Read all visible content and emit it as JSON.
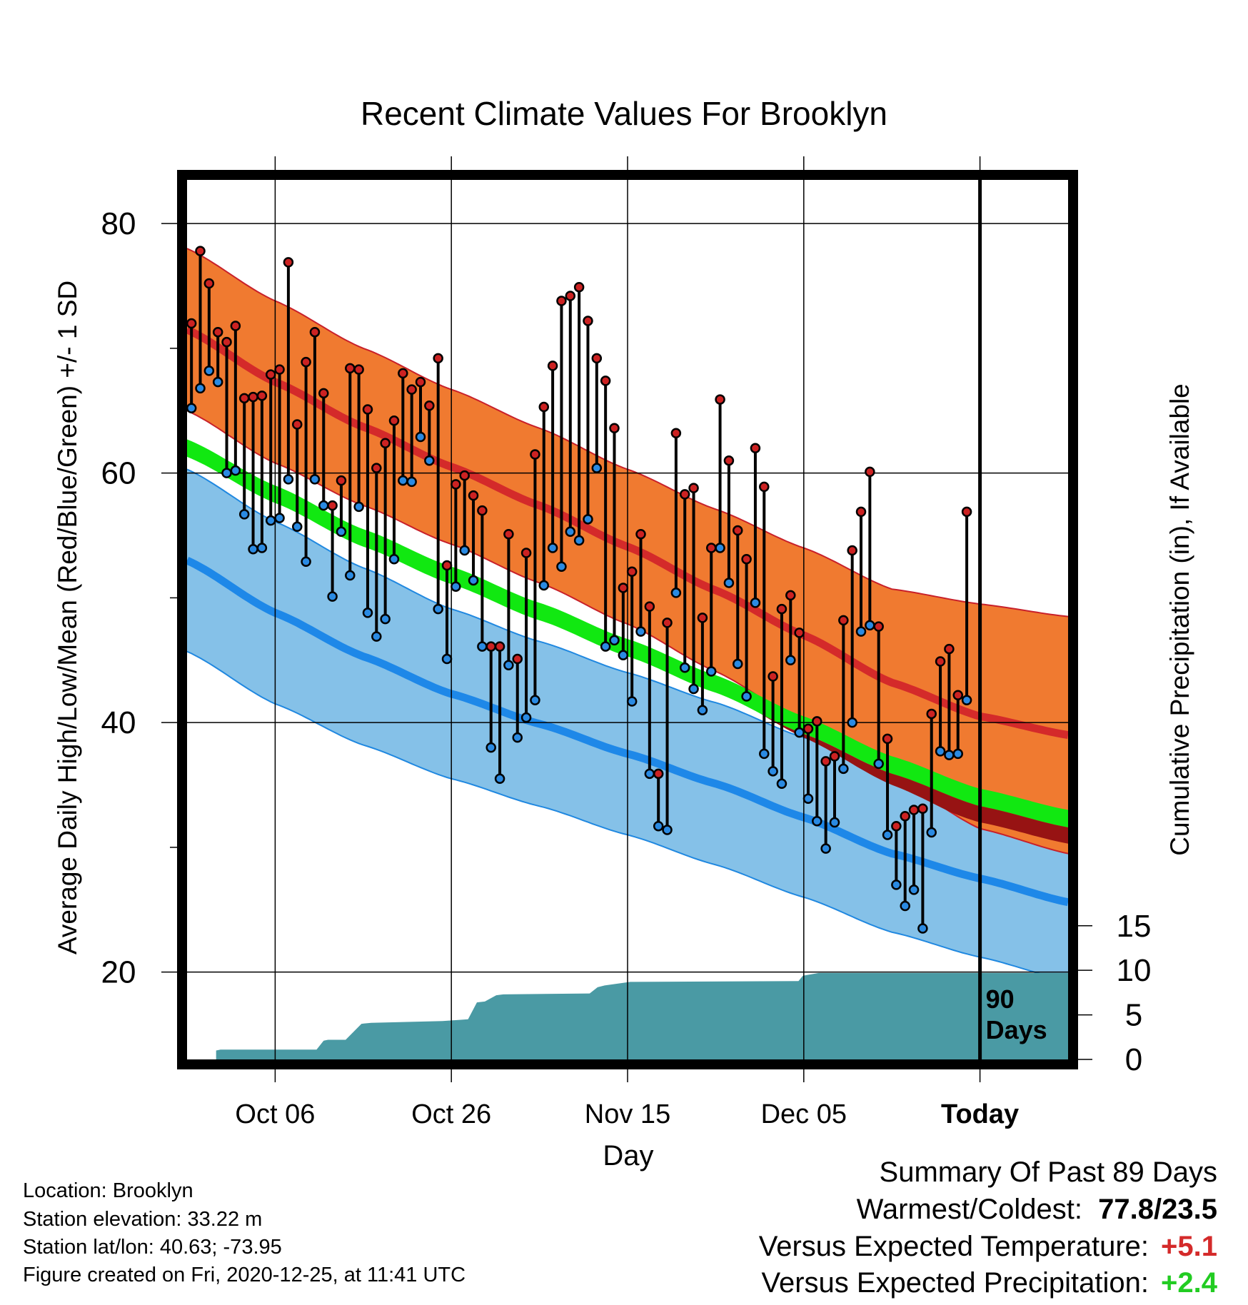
{
  "chart_data": {
    "type": "line",
    "title": "Recent Climate Values For Brooklyn",
    "xlabel": "Day",
    "ylabel_left": "Average Daily High/Low/Mean (Red/Blue/Green) +/- 1 SD",
    "ylabel_right": "Cumulative Precipitation (in), If Available",
    "x_start_day": 0,
    "x_end_day": 100,
    "ylim": [
      13,
      83.5
    ],
    "x_ticks": [
      {
        "day": 10,
        "label": "Oct 06"
      },
      {
        "day": 30,
        "label": "Oct 26"
      },
      {
        "day": 50,
        "label": "Nov 15"
      },
      {
        "day": 70,
        "label": "Dec 05"
      },
      {
        "day": 90,
        "label": "Today"
      }
    ],
    "y_ticks": [
      20,
      40,
      60,
      80
    ],
    "y2_ticks": [
      0,
      5,
      10,
      15
    ],
    "y2_per_left_unit": 1.4,
    "today_label": "90\nDays",
    "colors": {
      "high_band": "#f07a30",
      "high_mean": "#d42a2a",
      "high_edge": "#c8202a",
      "low_band": "#85c1e8",
      "low_mean": "#1e88e8",
      "low_edge": "#2088e0",
      "mean_band": "#11e811",
      "precip": "#4a9aa4",
      "excess_band": "#971313",
      "high_dot": "#cc2222",
      "low_dot": "#2a8ae2",
      "pos_value": "#d42a2a",
      "good_value": "#22cc22"
    },
    "normals": {
      "days": [
        0,
        10,
        20,
        30,
        40,
        50,
        60,
        70,
        80,
        90,
        100
      ],
      "high_mean": [
        71.5,
        67.3,
        63.7,
        60.5,
        57.4,
        54.1,
        50.6,
        47.0,
        43.2,
        40.5,
        39.0
      ],
      "high_sd": [
        6.5,
        6.5,
        6.3,
        6.2,
        6.2,
        6.2,
        6.5,
        7.0,
        7.5,
        9.0,
        9.5
      ],
      "low_mean": [
        53.0,
        48.8,
        45.3,
        42.3,
        39.9,
        37.5,
        35.1,
        32.4,
        29.5,
        27.5,
        25.6
      ],
      "low_sd": [
        7.3,
        7.3,
        7.1,
        6.8,
        6.6,
        6.5,
        6.5,
        6.4,
        6.3,
        6.3,
        6.3
      ],
      "mean": [
        62.0,
        58.3,
        54.8,
        51.8,
        48.9,
        46.0,
        43.1,
        39.8,
        36.6,
        34.0,
        32.3
      ]
    },
    "series": [
      {
        "name": "High",
        "values": [
          72.0,
          77.8,
          75.2,
          71.3,
          70.5,
          71.8,
          66.0,
          66.1,
          66.2,
          67.9,
          68.3,
          76.9,
          63.9,
          68.9,
          71.3,
          66.4,
          57.4,
          59.4,
          68.4,
          68.3,
          65.1,
          60.4,
          62.4,
          64.2,
          68.0,
          66.7,
          67.3,
          65.4,
          69.2,
          52.6,
          59.1,
          59.8,
          58.2,
          57.0,
          46.1,
          46.1,
          55.1,
          45.1,
          53.6,
          61.5,
          65.3,
          68.6,
          73.8,
          74.2,
          74.9,
          72.2,
          69.2,
          67.4,
          63.6,
          50.8,
          52.1,
          55.1,
          49.3,
          35.9,
          48.0,
          63.2,
          58.3,
          58.8,
          48.4,
          54.0,
          65.9,
          61.0,
          55.4,
          53.1,
          62.0,
          58.9,
          43.7,
          49.1,
          50.2,
          47.2,
          39.5,
          40.1,
          36.9,
          37.3,
          48.2,
          53.8,
          56.9,
          60.1,
          47.7,
          38.7,
          31.7,
          32.5,
          33.0,
          33.1,
          40.7,
          44.9,
          45.9,
          42.2,
          56.9
        ]
      },
      {
        "name": "Low",
        "values": [
          65.2,
          66.8,
          68.2,
          67.3,
          60.0,
          60.2,
          56.7,
          53.9,
          54.0,
          56.2,
          56.4,
          59.5,
          55.7,
          52.9,
          59.5,
          57.4,
          50.1,
          55.3,
          51.8,
          57.3,
          48.8,
          46.9,
          48.3,
          53.1,
          59.4,
          59.3,
          62.9,
          61.0,
          49.1,
          45.1,
          50.9,
          53.8,
          51.4,
          46.1,
          38.0,
          35.5,
          44.6,
          38.8,
          40.4,
          41.8,
          51.0,
          54.0,
          52.5,
          55.3,
          54.6,
          56.3,
          60.4,
          46.1,
          46.6,
          45.4,
          41.7,
          47.3,
          35.9,
          31.7,
          31.4,
          50.4,
          44.4,
          42.7,
          41.0,
          44.1,
          54.0,
          51.2,
          44.7,
          42.1,
          49.6,
          37.5,
          36.1,
          35.1,
          45.0,
          39.2,
          33.9,
          32.1,
          29.9,
          32.0,
          36.3,
          40.0,
          47.3,
          47.8,
          36.7,
          31.0,
          27.0,
          25.3,
          26.6,
          23.5,
          31.2,
          37.7,
          37.4,
          37.5,
          41.8
        ]
      }
    ],
    "precip": {
      "days": [
        3.3,
        3.8,
        5,
        14.7,
        15.5,
        16,
        18,
        19.8,
        20.9,
        29,
        31.9,
        32.9,
        33.8,
        35.1,
        35.9,
        45.7,
        46.6,
        47.4,
        50.3,
        69.4,
        69.9,
        71.7
      ],
      "values": [
        1.0,
        1.1,
        1.1,
        1.1,
        2.1,
        2.2,
        2.2,
        4.0,
        4.1,
        4.3,
        4.5,
        6.4,
        6.5,
        7.2,
        7.3,
        7.4,
        8.1,
        8.3,
        8.7,
        8.8,
        9.4,
        9.7
      ]
    }
  },
  "info": {
    "location": "Location: Brooklyn",
    "elevation": "Station elevation: 33.22 m",
    "latlon": "Station lat/lon: 40.63; -73.95",
    "created": "Figure created on Fri, 2020-12-25, at 11:41 UTC"
  },
  "summary": {
    "title": "Summary Of Past 89 Days",
    "warmest_label": "Warmest/Coldest:",
    "warmest_value": "77.8/23.5",
    "temp_label": "Versus Expected Temperature:",
    "temp_value": "+5.1",
    "precip_label": "Versus Expected Precipitation:",
    "precip_value": "+2.4"
  }
}
